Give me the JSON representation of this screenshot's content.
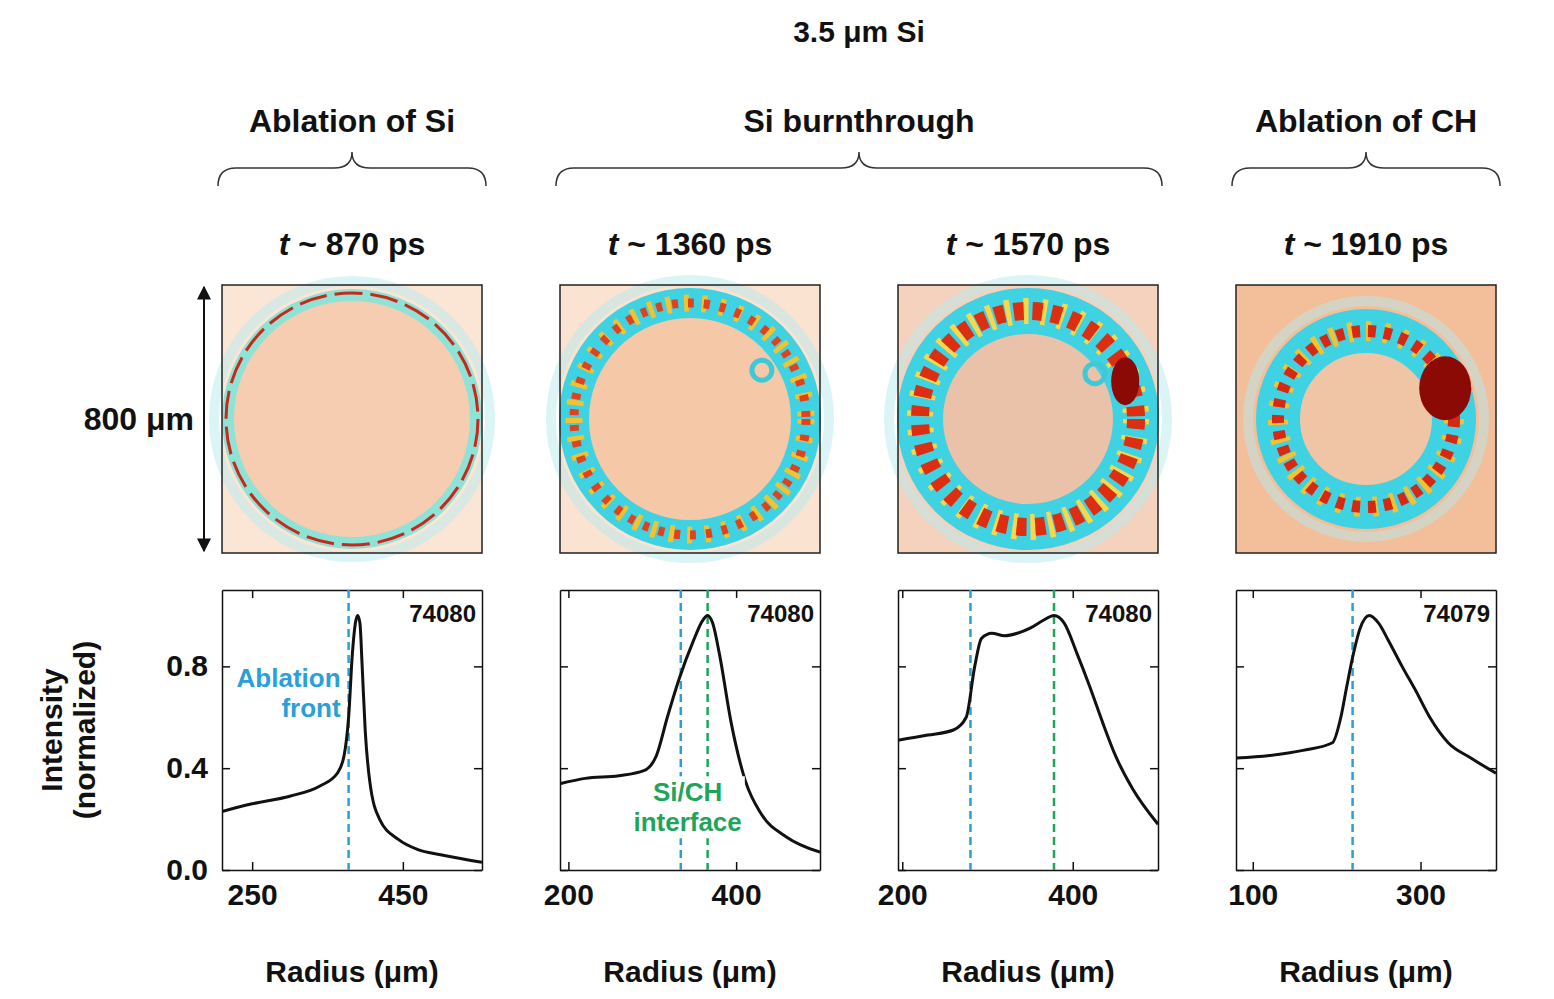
{
  "figure": {
    "title": "3.5 μm Si",
    "scale_label": "800 μm",
    "groups": [
      {
        "label": "Ablation of Si",
        "panels": [
          0
        ]
      },
      {
        "label": "Si burnthrough",
        "panels": [
          1,
          2
        ]
      },
      {
        "label": "Ablation of CH",
        "panels": [
          3
        ]
      }
    ]
  },
  "chart_data": [
    {
      "type": "line",
      "subtitle": "t ~ 870 ps",
      "x_label": "Radius (μm)",
      "y_label": "Intensity (normalized)",
      "annotation": "74080",
      "x": [
        210,
        250,
        300,
        340,
        363,
        372,
        378,
        383,
        387,
        390,
        393,
        396,
        400,
        406,
        419,
        444,
        470,
        500,
        555
      ],
      "series": [
        {
          "color": "#111111",
          "values": [
            0.23,
            0.26,
            0.29,
            0.33,
            0.38,
            0.45,
            0.6,
            0.85,
            0.97,
            1.0,
            0.97,
            0.8,
            0.55,
            0.35,
            0.2,
            0.12,
            0.08,
            0.06,
            0.03
          ]
        }
      ],
      "xlim": [
        210,
        555
      ],
      "xticks": [
        250,
        450
      ],
      "ylim": [
        0,
        1.1
      ],
      "yticks": [
        {
          "value": 0,
          "label": "0.0"
        },
        {
          "value": 0.4,
          "label": "0.4"
        },
        {
          "value": 0.8,
          "label": "0.8"
        }
      ],
      "vlines": [
        {
          "x": 378,
          "color": "#2a9fd8",
          "label": "Ablation front"
        }
      ]
    },
    {
      "type": "line",
      "subtitle": "t ~ 1360 ps",
      "x_label": "Radius (μm)",
      "annotation": "74080",
      "x": [
        191,
        220,
        260,
        290,
        305,
        318,
        332,
        349,
        360,
        366,
        372,
        380,
        394,
        411,
        430,
        460,
        500
      ],
      "series": [
        {
          "color": "#111111",
          "values": [
            0.34,
            0.36,
            0.37,
            0.39,
            0.45,
            0.6,
            0.75,
            0.9,
            0.98,
            1.0,
            0.97,
            0.85,
            0.58,
            0.35,
            0.22,
            0.13,
            0.07
          ]
        }
      ],
      "xlim": [
        190,
        500
      ],
      "xticks": [
        200,
        400
      ],
      "ylim": [
        0,
        1.1
      ],
      "yticks": [
        {
          "value": 0,
          "label": "0.0"
        },
        {
          "value": 0.4,
          "label": "0.4"
        },
        {
          "value": 0.8,
          "label": "0.8"
        }
      ],
      "tick_labels": "x",
      "vlines": [
        {
          "x": 334,
          "color": "#2a9fd8"
        },
        {
          "x": 366,
          "color": "#1fa55a",
          "label": "Si/CH interface"
        }
      ]
    },
    {
      "type": "line",
      "subtitle": "t ~ 1570 ps",
      "x_label": "Radius (μm)",
      "annotation": "74080",
      "x": [
        195,
        230,
        260,
        275,
        285,
        293,
        305,
        320,
        335,
        350,
        365,
        378,
        390,
        405,
        420,
        435,
        450,
        470,
        500
      ],
      "series": [
        {
          "color": "#111111",
          "values": [
            0.51,
            0.53,
            0.55,
            0.6,
            0.8,
            0.91,
            0.93,
            0.92,
            0.93,
            0.95,
            0.98,
            1.0,
            0.97,
            0.85,
            0.72,
            0.58,
            0.45,
            0.32,
            0.18
          ]
        }
      ],
      "xlim": [
        195,
        500
      ],
      "xticks": [
        200,
        400
      ],
      "ylim": [
        0,
        1.1
      ],
      "yticks": [
        {
          "value": 0,
          "label": "0.0"
        },
        {
          "value": 0.4,
          "label": "0.4"
        },
        {
          "value": 0.8,
          "label": "0.8"
        }
      ],
      "tick_labels": "x",
      "vlines": [
        {
          "x": 280,
          "color": "#2a9fd8"
        },
        {
          "x": 378,
          "color": "#1fa55a"
        }
      ]
    },
    {
      "type": "line",
      "subtitle": "t ~ 1910 ps",
      "x_label": "Radius (μm)",
      "annotation": "74079",
      "x": [
        80,
        120,
        160,
        195,
        205,
        212,
        220,
        228,
        239,
        250,
        262,
        278,
        295,
        311,
        333,
        360,
        390
      ],
      "series": [
        {
          "color": "#111111",
          "values": [
            0.44,
            0.45,
            0.47,
            0.5,
            0.6,
            0.72,
            0.85,
            0.95,
            1.0,
            0.97,
            0.9,
            0.8,
            0.7,
            0.6,
            0.5,
            0.44,
            0.38
          ]
        }
      ],
      "xlim": [
        80,
        390
      ],
      "xticks": [
        100,
        300
      ],
      "ylim": [
        0,
        1.1
      ],
      "yticks": [
        {
          "value": 0,
          "label": "0.0"
        },
        {
          "value": 0.4,
          "label": "0.4"
        },
        {
          "value": 0.8,
          "label": "0.8"
        }
      ],
      "tick_labels": "x",
      "vlines": [
        {
          "x": 219,
          "color": "#2a9fd8"
        }
      ]
    }
  ]
}
